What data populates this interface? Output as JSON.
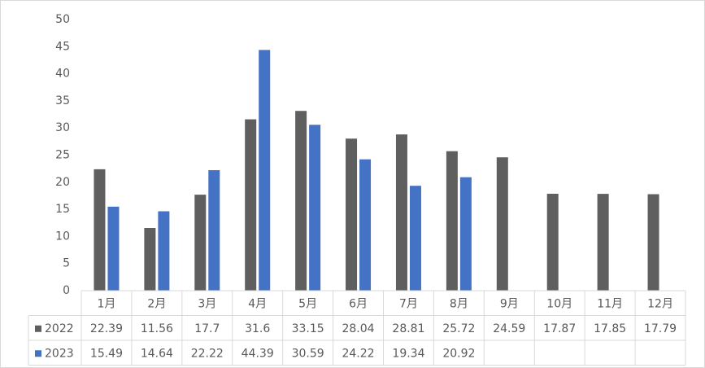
{
  "chart_data": {
    "type": "bar",
    "categories": [
      "1月",
      "2月",
      "3月",
      "4月",
      "5月",
      "6月",
      "7月",
      "8月",
      "9月",
      "10月",
      "11月",
      "12月"
    ],
    "series": [
      {
        "name": "2022",
        "color": "#5f5f5f",
        "values": [
          22.39,
          11.56,
          17.7,
          31.6,
          33.15,
          28.04,
          28.81,
          25.72,
          24.59,
          17.87,
          17.85,
          17.79
        ]
      },
      {
        "name": "2023",
        "color": "#4472c4",
        "values": [
          15.49,
          14.64,
          22.22,
          44.39,
          30.59,
          24.22,
          19.34,
          20.92,
          null,
          null,
          null,
          null
        ]
      }
    ],
    "ylim": [
      0,
      50
    ],
    "yticks": [
      0,
      5,
      10,
      15,
      20,
      25,
      30,
      35,
      40,
      45,
      50
    ],
    "grid": false
  }
}
